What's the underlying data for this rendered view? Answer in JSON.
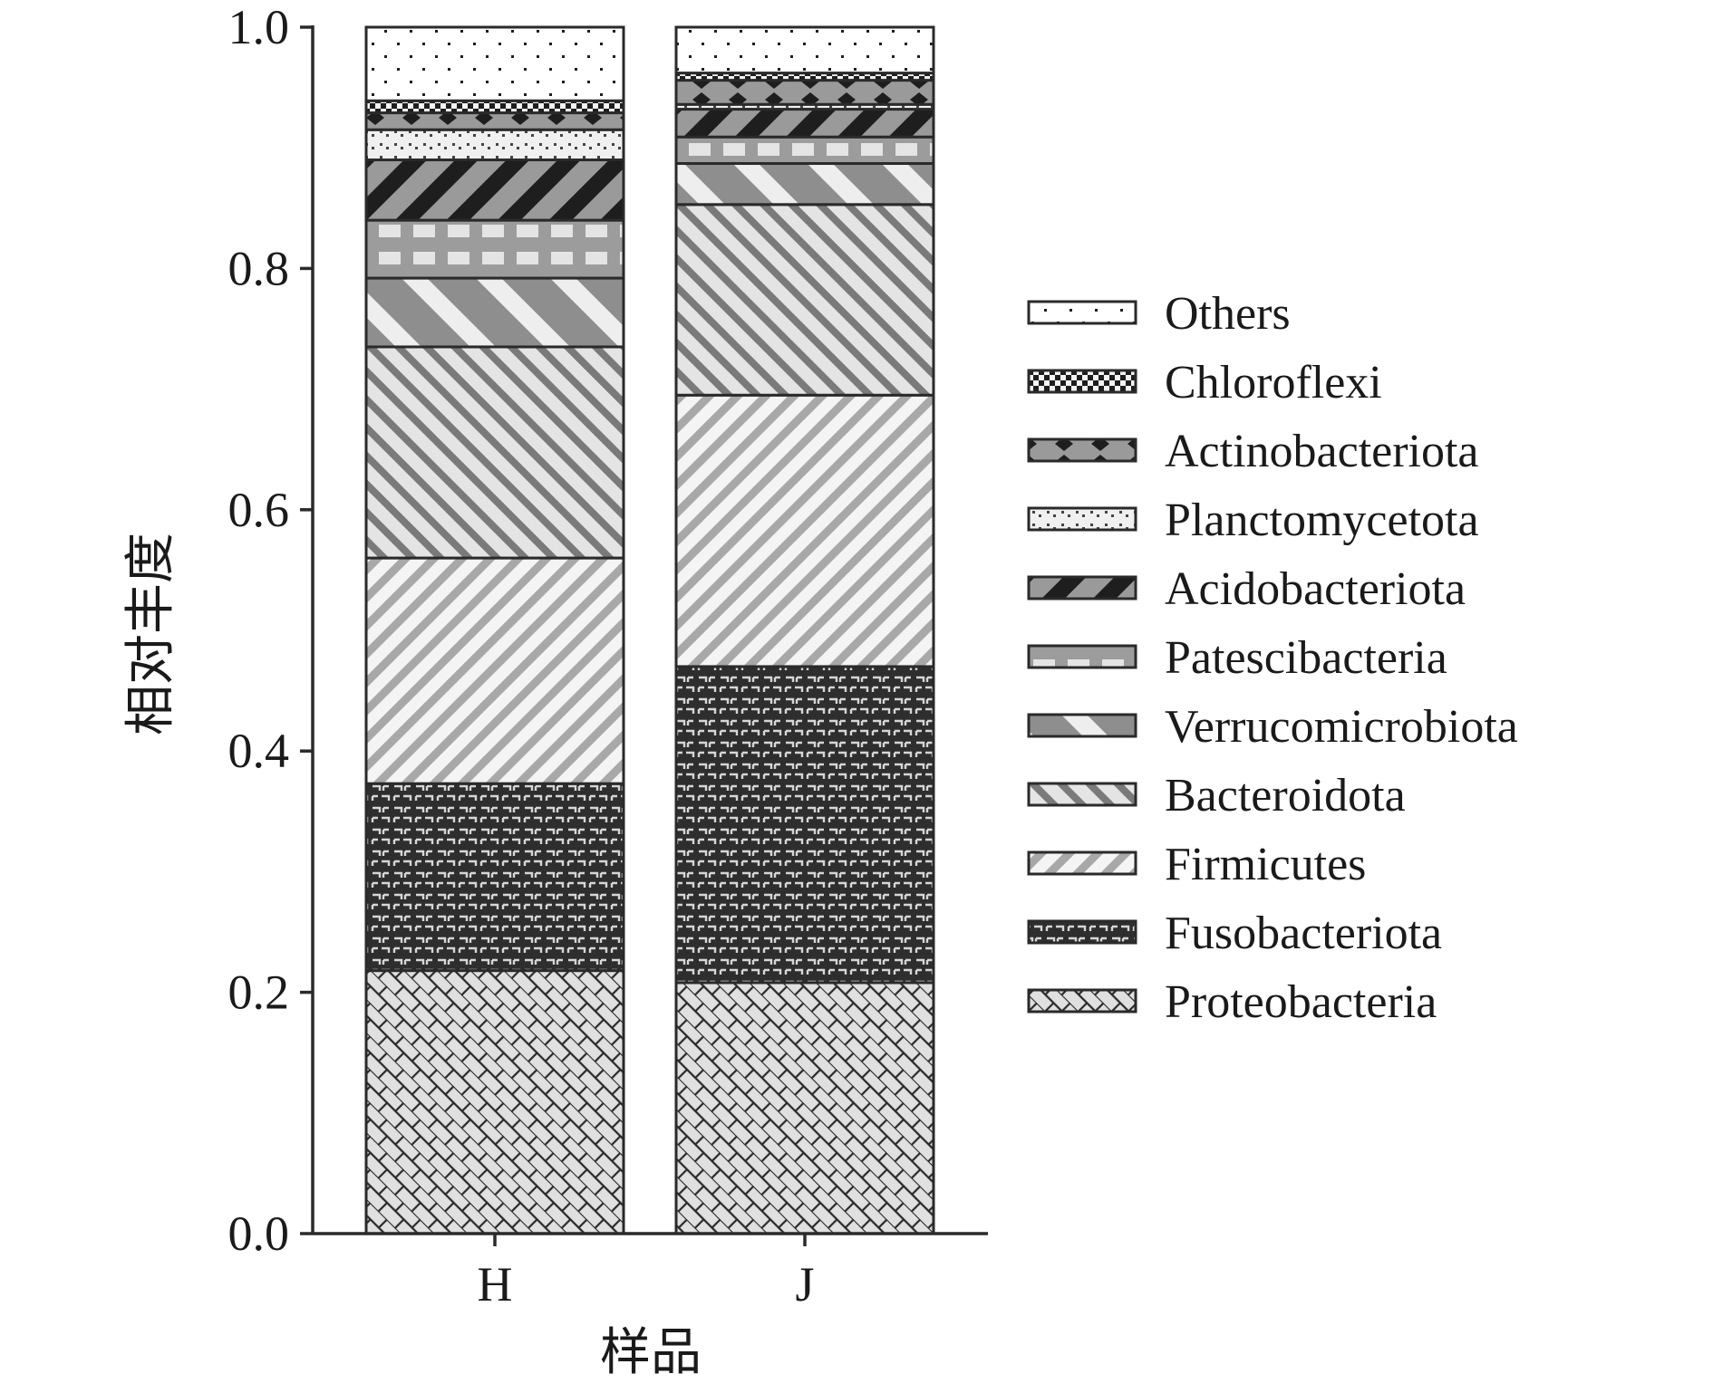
{
  "chart_data": {
    "type": "bar",
    "stacked": true,
    "title": "",
    "xlabel": "样品",
    "ylabel": "相对丰度",
    "ylim": [
      0,
      1.0
    ],
    "yticks": [
      "0.0",
      "0.2",
      "0.4",
      "0.6",
      "0.8",
      "1.0"
    ],
    "categories": [
      "H",
      "J"
    ],
    "legend_position": "right",
    "series": [
      {
        "name": "Proteobacteria",
        "pattern": "brick-icon",
        "values": [
          0.218,
          0.208
        ]
      },
      {
        "name": "Fusobacteriota",
        "pattern": "dark-maze-icon",
        "values": [
          0.155,
          0.262
        ]
      },
      {
        "name": "Firmicutes",
        "pattern": "light-diagonal-stripe-icon",
        "values": [
          0.187,
          0.225
        ]
      },
      {
        "name": "Bacteroidota",
        "pattern": "back-diagonal-stripe-icon",
        "values": [
          0.175,
          0.158
        ]
      },
      {
        "name": "Verrucomicrobiota",
        "pattern": "gray-wide-stripe-icon",
        "values": [
          0.057,
          0.034
        ]
      },
      {
        "name": "Patescibacteria",
        "pattern": "gray-grid-icon",
        "values": [
          0.048,
          0.022
        ]
      },
      {
        "name": "Acidobacteriota",
        "pattern": "dark-wide-stripe-icon",
        "values": [
          0.05,
          0.023
        ]
      },
      {
        "name": "Planctomycetota",
        "pattern": "light-dot-icon",
        "values": [
          0.025,
          0.004
        ]
      },
      {
        "name": "Actinobacteriota",
        "pattern": "diamond-chain-icon",
        "values": [
          0.014,
          0.02
        ]
      },
      {
        "name": "Chloroflexi",
        "pattern": "checker-icon",
        "values": [
          0.01,
          0.006
        ]
      },
      {
        "name": "Others",
        "pattern": "sparse-dot-icon",
        "values": [
          0.061,
          0.038
        ]
      }
    ],
    "colors": {
      "axis": "#2a2a2a",
      "light_fill": "#e2e2e2",
      "mid_fill": "#9a9a9a",
      "dark_fill": "#2e2e2e",
      "white_fill": "#ffffff"
    }
  }
}
